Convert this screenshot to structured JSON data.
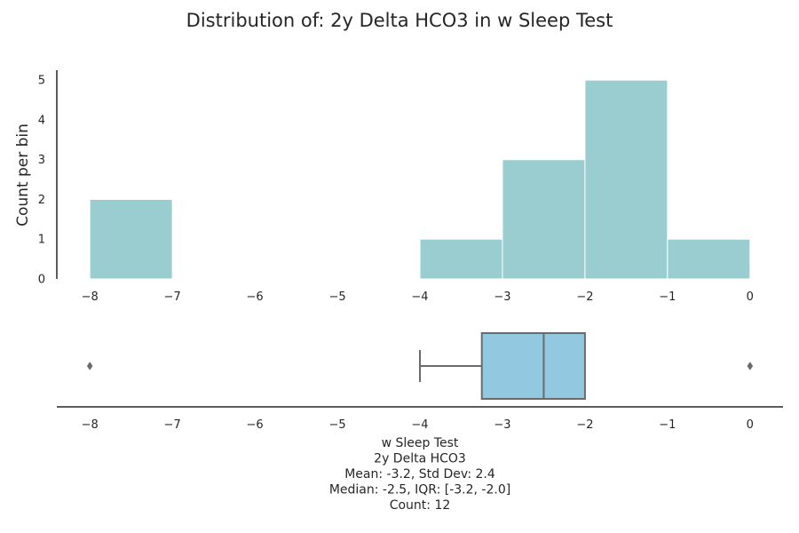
{
  "chart_data": [
    {
      "type": "bar",
      "title": "Distribution of: 2y Delta HCO3 in w Sleep Test",
      "ylabel": "Count per bin",
      "bins": [
        {
          "from": -8,
          "to": -7,
          "count": 2
        },
        {
          "from": -7,
          "to": -6,
          "count": 0
        },
        {
          "from": -6,
          "to": -5,
          "count": 0
        },
        {
          "from": -5,
          "to": -4,
          "count": 0
        },
        {
          "from": -4,
          "to": -3,
          "count": 1
        },
        {
          "from": -3,
          "to": -2,
          "count": 3
        },
        {
          "from": -2,
          "to": -1,
          "count": 5
        },
        {
          "from": -1,
          "to": 0,
          "count": 1
        }
      ],
      "xlim": [
        -8.4,
        0.4
      ],
      "ylim": [
        0,
        5.25
      ],
      "xticks": [
        -8,
        -7,
        -6,
        -5,
        -4,
        -3,
        -2,
        -1,
        0
      ],
      "xtick_labels": [
        "−8",
        "−7",
        "−6",
        "−5",
        "−4",
        "−3",
        "−2",
        "−1",
        "0"
      ],
      "yticks": [
        0,
        1,
        2,
        3,
        4,
        5
      ],
      "ytick_labels": [
        "0",
        "1",
        "2",
        "3",
        "4",
        "5"
      ],
      "bar_color": "#9acdcf",
      "grid": false
    },
    {
      "type": "box",
      "q1": -3.25,
      "median": -2.5,
      "q3": -2.0,
      "whisker_low": -4.0,
      "whisker_high": -2.0,
      "outliers": [
        -8,
        0
      ],
      "xlim": [
        -8.4,
        0.4
      ],
      "xticks": [
        -8,
        -7,
        -6,
        -5,
        -4,
        -3,
        -2,
        -1,
        0
      ],
      "xtick_labels": [
        "−8",
        "−7",
        "−6",
        "−5",
        "−4",
        "−3",
        "−2",
        "−1",
        "0"
      ],
      "xlabel_lines": [
        "w Sleep Test",
        "2y Delta HCO3",
        "Mean: -3.2, Std Dev: 2.4",
        "Median: -2.5, IQR: [-3.2, -2.0]",
        "Count: 12"
      ],
      "box_color": "#92c8e0",
      "line_color": "#6b6b6b"
    }
  ]
}
